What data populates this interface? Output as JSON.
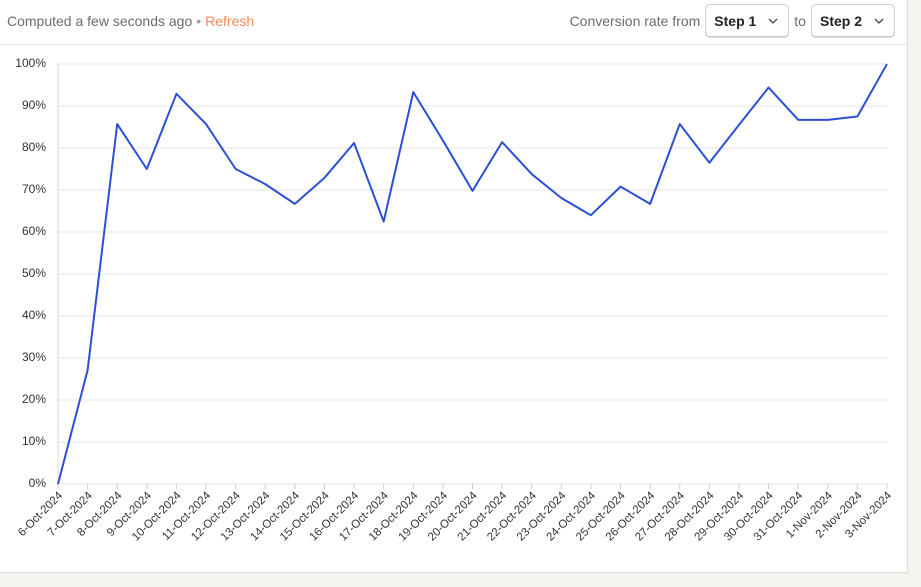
{
  "header": {
    "status": "Computed a few seconds ago",
    "separator": "•",
    "refresh": "Refresh",
    "from_label": "Conversion rate from",
    "from_step": "Step 1",
    "to_label": "to",
    "to_step": "Step 2"
  },
  "chart_data": {
    "type": "line",
    "color": "#2b4fd6",
    "categories": [
      "6-Oct-2024",
      "7-Oct-2024",
      "8-Oct-2024",
      "9-Oct-2024",
      "10-Oct-2024",
      "11-Oct-2024",
      "12-Oct-2024",
      "13-Oct-2024",
      "14-Oct-2024",
      "15-Oct-2024",
      "16-Oct-2024",
      "17-Oct-2024",
      "18-Oct-2024",
      "19-Oct-2024",
      "20-Oct-2024",
      "21-Oct-2024",
      "22-Oct-2024",
      "23-Oct-2024",
      "24-Oct-2024",
      "25-Oct-2024",
      "26-Oct-2024",
      "27-Oct-2024",
      "28-Oct-2024",
      "29-Oct-2024",
      "30-Oct-2024",
      "31-Oct-2024",
      "1-Nov-2024",
      "2-Nov-2024",
      "3-Nov-2024"
    ],
    "values": [
      0,
      27.1,
      85.7,
      75,
      92.9,
      85.7,
      75,
      71.4,
      66.7,
      72.9,
      81.2,
      62.5,
      93.3,
      81.8,
      69.8,
      81.4,
      73.8,
      68.1,
      64,
      70.8,
      66.7,
      85.7,
      76.5,
      85.5,
      94.4,
      86.7,
      86.7,
      87.5,
      100
    ],
    "ylim": [
      0,
      100
    ],
    "yticks": [
      {
        "value": 0,
        "label": "0%"
      },
      {
        "value": 10,
        "label": "10%"
      },
      {
        "value": 20,
        "label": "20%"
      },
      {
        "value": 30,
        "label": "30%"
      },
      {
        "value": 40,
        "label": "40%"
      },
      {
        "value": 50,
        "label": "50%"
      },
      {
        "value": 60,
        "label": "60%"
      },
      {
        "value": 70,
        "label": "70%"
      },
      {
        "value": 80,
        "label": "80%"
      },
      {
        "value": 90,
        "label": "90%"
      },
      {
        "value": 100,
        "label": "100%"
      }
    ],
    "grid": true
  }
}
